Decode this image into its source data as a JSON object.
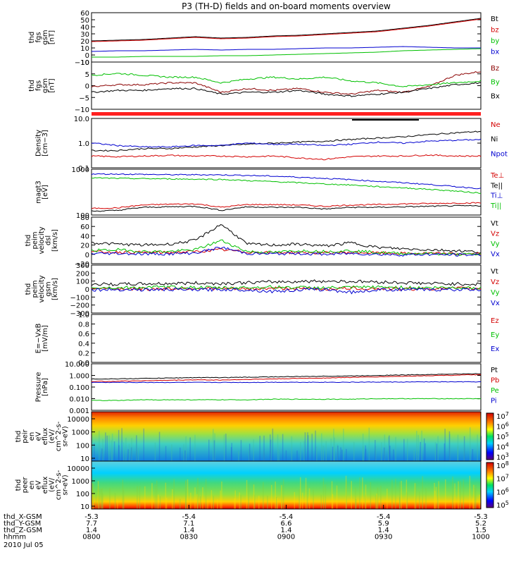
{
  "chart_data": {
    "type": "line",
    "title": "P3 (TH-D) fields and on-board moments overview",
    "x_ticks": [
      "0800",
      "0830",
      "0900",
      "0930",
      "1000"
    ],
    "ephemeris": [
      {
        "label": "thd_X-GSM",
        "values": [
          "-5.3",
          "-5.4",
          "-5.4",
          "-5.4",
          "-5.3"
        ]
      },
      {
        "label": "thd_Y-GSM",
        "values": [
          "7.7",
          "7.1",
          "6.6",
          "5.9",
          "5.2"
        ]
      },
      {
        "label": "thd_Z-GSM",
        "values": [
          "1.4",
          "1.4",
          "1.4",
          "1.4",
          "1.5"
        ]
      },
      {
        "label": "hhmm",
        "values": [
          "0800",
          "0830",
          "0900",
          "0930",
          "1000"
        ]
      }
    ],
    "date": "2010 Jul 05",
    "panels": [
      {
        "ylabel": [
          "thd",
          "fgs",
          "gsm",
          "[nT]"
        ],
        "yticks": [
          "60",
          "50",
          "40",
          "30",
          "20",
          "10",
          "0",
          "−10"
        ],
        "ylim": [
          -10,
          60
        ],
        "scale": "linear",
        "series": [
          {
            "name": "Bt",
            "color": "#000000",
            "values": [
              20,
              21,
              22,
              24,
              26,
              24,
              25,
              27,
              28,
              30,
              32,
              34,
              38,
              42,
              47,
              52
            ]
          },
          {
            "name": "bz",
            "color": "#d40000",
            "values": [
              19,
              20,
              21,
              23,
              25,
              23,
              24,
              26,
              27,
              29,
              31,
              33,
              37,
              41,
              46,
              51
            ]
          },
          {
            "name": "by",
            "color": "#00c000",
            "values": [
              -3,
              -3,
              -2,
              -2,
              -2,
              -1,
              -1,
              0,
              1,
              2,
              3,
              4,
              6,
              7,
              8,
              9
            ]
          },
          {
            "name": "bx",
            "color": "#0000d0",
            "values": [
              5,
              6,
              6,
              7,
              8,
              7,
              8,
              8,
              9,
              10,
              10,
              11,
              12,
              11,
              10,
              10
            ]
          }
        ]
      },
      {
        "ylabel": [
          "thd",
          "fgs",
          "gsm",
          "[nT]"
        ],
        "yticks": [
          "10",
          "5",
          "0",
          "−5",
          "−10"
        ],
        "ylim": [
          -15,
          10
        ],
        "scale": "linear",
        "series": [
          {
            "name": "Bz",
            "color": "#8b0000",
            "values": [
              -3,
              -2,
              -2,
              -1,
              -1,
              -6,
              -4,
              -5,
              -4,
              -6,
              -7,
              -5,
              -6,
              -3,
              3,
              5
            ]
          },
          {
            "name": "By",
            "color": "#00c000",
            "values": [
              3,
              4,
              3,
              2,
              2,
              -1,
              1,
              2,
              1,
              2,
              0,
              -1,
              -3,
              -2,
              -1,
              0
            ]
          },
          {
            "name": "Bx",
            "color": "#000000",
            "values": [
              -6,
              -5,
              -5,
              -4,
              -4,
              -7,
              -6,
              -6,
              -5,
              -7,
              -8,
              -7,
              -6,
              -4,
              -2,
              -1
            ]
          }
        ]
      },
      {
        "ylabel": [
          "Density",
          "[cm−3]"
        ],
        "yticks": [
          "10.0",
          "1.0",
          "0.1"
        ],
        "ylim": [
          0.1,
          10
        ],
        "scale": "log",
        "series": [
          {
            "name": "Ne",
            "color": "#d40000",
            "values": [
              0.3,
              0.28,
              0.3,
              0.32,
              0.3,
              0.3,
              0.28,
              0.3,
              0.25,
              0.22,
              0.28,
              0.3,
              0.3,
              0.33,
              0.3,
              0.3
            ]
          },
          {
            "name": "Ni",
            "color": "#000000",
            "values": [
              0.5,
              0.5,
              0.6,
              0.6,
              0.7,
              0.8,
              0.9,
              1.0,
              1.1,
              1.2,
              1.4,
              1.6,
              1.8,
              2.2,
              2.6,
              3.0
            ]
          },
          {
            "name": "Npot",
            "color": "#0000d0",
            "values": [
              1.0,
              0.8,
              0.7,
              0.7,
              0.8,
              0.8,
              1.0,
              0.9,
              0.9,
              0.8,
              0.9,
              1.1,
              1.0,
              1.2,
              1.3,
              1.4
            ]
          }
        ]
      },
      {
        "ylabel": [
          "magt3",
          "[eV]"
        ],
        "yticks": [
          "1000",
          "100"
        ],
        "ylim": [
          80,
          10000
        ],
        "scale": "log",
        "series": [
          {
            "name": "Te⊥",
            "color": "#d40000",
            "values": [
              160,
              170,
              230,
              250,
              260,
              180,
              240,
              240,
              230,
              200,
              230,
              240,
              260,
              270,
              280,
              290
            ]
          },
          {
            "name": "Te||",
            "color": "#000000",
            "values": [
              120,
              130,
              180,
              190,
              200,
              130,
              190,
              180,
              180,
              150,
              180,
              180,
              190,
              200,
              210,
              210
            ]
          },
          {
            "name": "Ti⊥",
            "color": "#0000d0",
            "values": [
              6000,
              6000,
              5800,
              5600,
              5600,
              5500,
              5200,
              4800,
              4300,
              3800,
              3300,
              2800,
              2400,
              2000,
              1600,
              1300
            ]
          },
          {
            "name": "Ti||",
            "color": "#00c000",
            "values": [
              4000,
              3800,
              3700,
              3600,
              3500,
              3400,
              3000,
              2700,
              2400,
              2100,
              1900,
              1600,
              1400,
              1200,
              1000,
              800
            ]
          }
        ]
      },
      {
        "ylabel": [
          "thd",
          "peim",
          "velocity",
          "dsl",
          "[km/s]"
        ],
        "yticks": [
          "80",
          "60",
          "40",
          "20",
          "0",
          "−20"
        ],
        "ylim": [
          -20,
          80
        ],
        "scale": "linear",
        "series": [
          {
            "name": "Vt",
            "color": "#000000",
            "values": [
              25,
              22,
              20,
              22,
              30,
              65,
              22,
              20,
              22,
              18,
              25,
              15,
              12,
              10,
              8,
              5
            ]
          },
          {
            "name": "Vz",
            "color": "#d40000",
            "values": [
              5,
              5,
              4,
              4,
              6,
              10,
              5,
              4,
              4,
              3,
              4,
              3,
              2,
              2,
              1,
              1
            ]
          },
          {
            "name": "Vy",
            "color": "#00c000",
            "values": [
              8,
              10,
              6,
              6,
              10,
              30,
              6,
              4,
              8,
              6,
              8,
              4,
              2,
              2,
              0,
              0
            ]
          },
          {
            "name": "Vx",
            "color": "#0000d0",
            "values": [
              2,
              2,
              1,
              1,
              3,
              15,
              2,
              1,
              2,
              0,
              2,
              0,
              -1,
              0,
              -1,
              -1
            ]
          }
        ]
      },
      {
        "ylabel": [
          "thd",
          "peim",
          "velocity",
          "gsm",
          "[km/s]"
        ],
        "yticks": [
          "300",
          "200",
          "100",
          "0",
          "−100",
          "−200",
          "−300"
        ],
        "ylim": [
          -300,
          300
        ],
        "scale": "linear",
        "series": [
          {
            "name": "Vt",
            "color": "#000000",
            "values": [
              60,
              60,
              65,
              70,
              75,
              70,
              80,
              90,
              95,
              100,
              95,
              90,
              80,
              70,
              65,
              60
            ]
          },
          {
            "name": "Vz",
            "color": "#d40000",
            "values": [
              10,
              5,
              0,
              5,
              10,
              5,
              0,
              10,
              5,
              0,
              10,
              5,
              0,
              5,
              10,
              5
            ]
          },
          {
            "name": "Vy",
            "color": "#00c000",
            "values": [
              20,
              15,
              20,
              25,
              20,
              15,
              20,
              25,
              20,
              15,
              20,
              25,
              20,
              15,
              20,
              15
            ]
          },
          {
            "name": "Vx",
            "color": "#0000d0",
            "values": [
              -10,
              -5,
              -10,
              -5,
              -10,
              -5,
              -10,
              -30,
              -10,
              -5,
              -40,
              -10,
              -5,
              -10,
              -5,
              -10
            ]
          }
        ]
      },
      {
        "ylabel": [
          "E=−VxB",
          "[mV/m]"
        ],
        "yticks": [
          "1.0",
          "0.8",
          "0.6",
          "0.4",
          "0.2",
          "0.0"
        ],
        "ylim": [
          0,
          1
        ],
        "scale": "linear",
        "series": [
          {
            "name": "Ez",
            "color": "#d40000",
            "values": []
          },
          {
            "name": "Ey",
            "color": "#00c000",
            "values": []
          },
          {
            "name": "Ex",
            "color": "#0000d0",
            "values": []
          }
        ]
      },
      {
        "ylabel": [
          "Pressure",
          "[nPa]"
        ],
        "yticks": [
          "10.000",
          "1.000",
          "0.100",
          "0.010",
          "0.001"
        ],
        "ylim": [
          0.001,
          10
        ],
        "scale": "log",
        "series": [
          {
            "name": "Pt",
            "color": "#000000",
            "values": [
              0.5,
              0.5,
              0.55,
              0.6,
              0.65,
              0.65,
              0.7,
              0.75,
              0.8,
              0.85,
              0.9,
              1.0,
              1.1,
              1.2,
              1.3,
              1.4
            ]
          },
          {
            "name": "Pb",
            "color": "#d40000",
            "values": [
              0.3,
              0.32,
              0.35,
              0.38,
              0.42,
              0.4,
              0.45,
              0.5,
              0.55,
              0.6,
              0.68,
              0.75,
              0.85,
              0.95,
              1.05,
              1.15
            ]
          },
          {
            "name": "Pe",
            "color": "#00c000",
            "values": [
              0.007,
              0.007,
              0.008,
              0.008,
              0.008,
              0.008,
              0.008,
              0.009,
              0.009,
              0.009,
              0.009,
              0.01,
              0.01,
              0.01,
              0.01,
              0.01
            ]
          },
          {
            "name": "Pi",
            "color": "#0000d0",
            "values": [
              0.25,
              0.25,
              0.25,
              0.25,
              0.25,
              0.25,
              0.25,
              0.26,
              0.26,
              0.26,
              0.26,
              0.27,
              0.27,
              0.28,
              0.28,
              0.28
            ]
          }
        ]
      }
    ],
    "spectrograms": [
      {
        "ylabel": [
          "thd",
          "peir",
          "en",
          "eV",
          "eflux",
          "(eV/",
          "cm^2-s-",
          "sr-eV)"
        ],
        "yticks": [
          "10000",
          "1000",
          "100",
          "10"
        ],
        "colorbar_ticks": [
          "10^7",
          "10^6",
          "10^5",
          "10^4",
          "10^3"
        ]
      },
      {
        "ylabel": [
          "thd",
          "peer",
          "en",
          "eV",
          "eflux",
          "(eV/",
          "cm^2-s-",
          "sr-eV)"
        ],
        "yticks": [
          "10000",
          "1000",
          "100",
          "10"
        ],
        "colorbar_ticks": [
          "10^8",
          "10^7",
          "10^6",
          "10^5"
        ]
      }
    ]
  }
}
